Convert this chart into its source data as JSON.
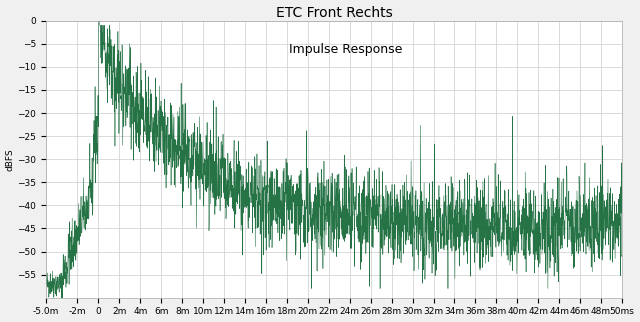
{
  "title": "ETC Front Rechts",
  "annotation": "Impulse Response",
  "ylabel": "dBFS",
  "xlim": [
    -5.0,
    50.0
  ],
  "ylim": [
    -60,
    0
  ],
  "yticks": [
    0,
    -5,
    -10,
    -15,
    -20,
    -25,
    -30,
    -35,
    -40,
    -45,
    -50,
    -55
  ],
  "xtick_positions": [
    -5,
    -2,
    0,
    2,
    4,
    6,
    8,
    10,
    12,
    14,
    16,
    18,
    20,
    22,
    24,
    26,
    28,
    30,
    32,
    34,
    36,
    38,
    40,
    42,
    44,
    46,
    48,
    50
  ],
  "xtick_labels": [
    "-5.0m",
    "-2m",
    "0",
    "2m",
    "4m",
    "6m",
    "8m",
    "10m",
    "12m",
    "14m",
    "16m",
    "18m",
    "20m",
    "22m",
    "24m",
    "26m",
    "28m",
    "30m",
    "32m",
    "34m",
    "36m",
    "38m",
    "40m",
    "42m",
    "44m",
    "46m",
    "48m",
    "50ms"
  ],
  "line_color": "#1a6b3c",
  "bg_color": "#f0f0f0",
  "plot_bg": "#ffffff",
  "grid_color": "#cccccc",
  "title_fontsize": 10,
  "annotation_fontsize": 9,
  "tick_fontsize": 6.5,
  "label_fontsize": 6.5,
  "seed": 42
}
